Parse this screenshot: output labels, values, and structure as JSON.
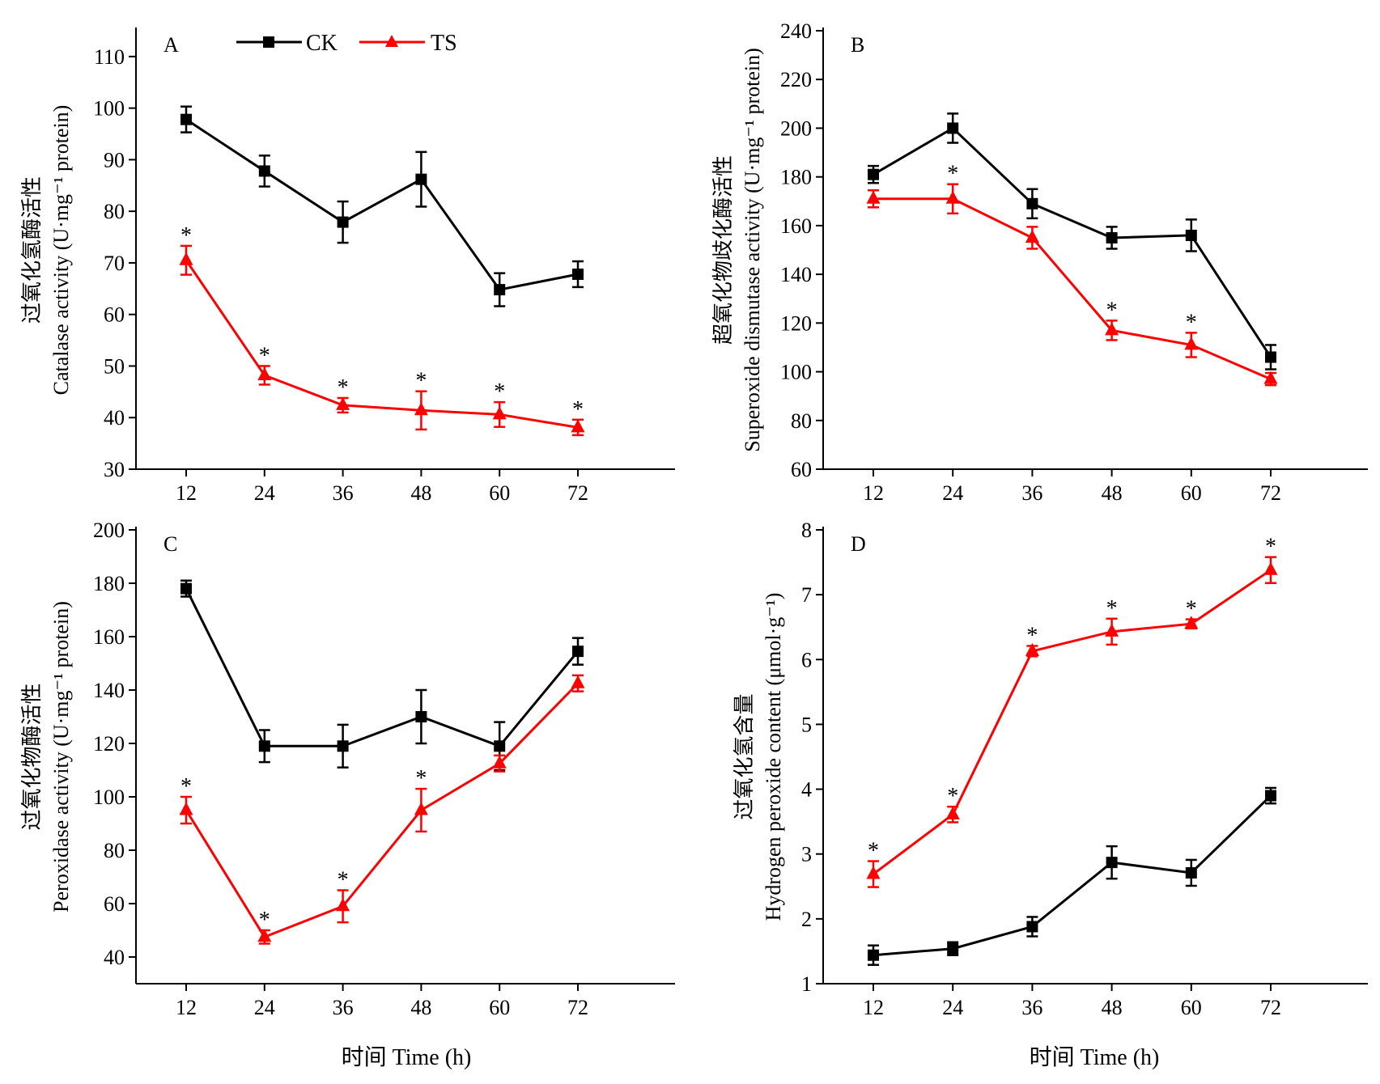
{
  "legend": [
    {
      "key": "CK",
      "label": "CK",
      "color": "#000000",
      "marker": "square"
    },
    {
      "key": "TS",
      "label": "TS",
      "color": "#ff0000",
      "marker": "triangle"
    }
  ],
  "x_label_bottom": "时间 Time (h)",
  "chart_data": [
    {
      "type": "line",
      "panel": "A",
      "ylabel_cn": "过氧化氢酶活性",
      "ylabel_en": "Catalase activity (U·mg⁻¹ protein)",
      "x": [
        12,
        24,
        36,
        48,
        60,
        72
      ],
      "ylim": [
        30,
        115
      ],
      "yticks": [
        30,
        40,
        50,
        60,
        70,
        80,
        90,
        100,
        110
      ],
      "series": [
        {
          "name": "CK",
          "values": [
            97.8,
            87.8,
            77.9,
            86.2,
            64.8,
            67.8
          ],
          "errors": [
            2.5,
            3.0,
            4.0,
            5.3,
            3.2,
            2.5
          ]
        },
        {
          "name": "TS",
          "values": [
            70.5,
            48.2,
            42.4,
            41.4,
            40.6,
            38.1
          ],
          "errors": [
            2.8,
            1.8,
            1.4,
            3.7,
            2.4,
            1.5
          ]
        }
      ],
      "significance": [
        {
          "x": 12,
          "label": "*"
        },
        {
          "x": 24,
          "label": "*"
        },
        {
          "x": 36,
          "label": "*"
        },
        {
          "x": 48,
          "label": "*"
        },
        {
          "x": 60,
          "label": "*"
        },
        {
          "x": 72,
          "label": "*"
        }
      ]
    },
    {
      "type": "line",
      "panel": "B",
      "ylabel_cn": "超氧化物歧化酶活性",
      "ylabel_en": "Superoxide dismutase activity (U·mg⁻¹ protein)",
      "x": [
        12,
        24,
        36,
        48,
        60,
        72
      ],
      "ylim": [
        60,
        240
      ],
      "yticks": [
        60,
        80,
        100,
        120,
        140,
        160,
        180,
        200,
        220,
        240
      ],
      "series": [
        {
          "name": "CK",
          "values": [
            181,
            200,
            169,
            155,
            156,
            106
          ],
          "errors": [
            3.5,
            6,
            6,
            4.5,
            6.5,
            5
          ]
        },
        {
          "name": "TS",
          "values": [
            171,
            171,
            155,
            117,
            111,
            97
          ],
          "errors": [
            3.5,
            6,
            4.5,
            4,
            5,
            2.5
          ]
        }
      ],
      "significance": [
        {
          "x": 24,
          "label": "*"
        },
        {
          "x": 48,
          "label": "*"
        },
        {
          "x": 60,
          "label": "*"
        }
      ]
    },
    {
      "type": "line",
      "panel": "C",
      "ylabel_cn": "过氧化物酶活性",
      "ylabel_en": "Peroxidase activity (U·mg⁻¹ protein)",
      "x": [
        12,
        24,
        36,
        48,
        60,
        72
      ],
      "ylim": [
        30,
        200
      ],
      "yticks": [
        40,
        60,
        80,
        100,
        120,
        140,
        160,
        180,
        200
      ],
      "series": [
        {
          "name": "CK",
          "values": [
            178,
            119,
            119,
            130,
            119,
            154.5
          ],
          "errors": [
            3,
            6,
            8,
            10,
            9,
            5
          ]
        },
        {
          "name": "TS",
          "values": [
            95,
            47.5,
            59,
            95,
            112.5,
            142.5
          ],
          "errors": [
            5,
            2.5,
            6,
            8,
            3,
            3
          ]
        }
      ],
      "significance": [
        {
          "x": 12,
          "label": "*"
        },
        {
          "x": 24,
          "label": "*"
        },
        {
          "x": 36,
          "label": "*"
        },
        {
          "x": 48,
          "label": "*"
        }
      ]
    },
    {
      "type": "line",
      "panel": "D",
      "ylabel_cn": "过氧化氢含量",
      "ylabel_en": "Hydrogen peroxide content (μmol·g⁻¹)",
      "x": [
        12,
        24,
        36,
        48,
        60,
        72
      ],
      "ylim": [
        1,
        8
      ],
      "yticks": [
        1,
        2,
        3,
        4,
        5,
        6,
        7,
        8
      ],
      "series": [
        {
          "name": "CK",
          "values": [
            1.44,
            1.54,
            1.88,
            2.87,
            2.71,
            3.9
          ],
          "errors": [
            0.15,
            0.1,
            0.15,
            0.25,
            0.2,
            0.12
          ]
        },
        {
          "name": "TS",
          "values": [
            2.69,
            3.61,
            6.13,
            6.43,
            6.55,
            7.38
          ],
          "errors": [
            0.2,
            0.12,
            0.08,
            0.2,
            0.07,
            0.2
          ]
        }
      ],
      "significance": [
        {
          "x": 12,
          "label": "*"
        },
        {
          "x": 24,
          "label": "*"
        },
        {
          "x": 36,
          "label": "*"
        },
        {
          "x": 48,
          "label": "*"
        },
        {
          "x": 60,
          "label": "*"
        },
        {
          "x": 72,
          "label": "*"
        }
      ]
    }
  ]
}
